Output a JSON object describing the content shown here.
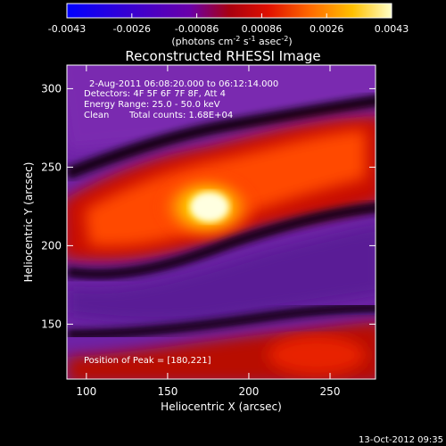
{
  "chart_data": {
    "type": "heatmap",
    "title": "Reconstructed RHESSI Image",
    "xlabel": "Heliocentric X (arcsec)",
    "ylabel": "Heliocentric Y (arcsec)",
    "xlim": [
      88,
      278
    ],
    "ylim": [
      115,
      315
    ],
    "x_ticks": [
      100,
      150,
      200,
      250
    ],
    "y_ticks": [
      150,
      200,
      250,
      300
    ],
    "colorbar": {
      "ticks": [
        "-0.0043",
        "-0.0026",
        "-0.00086",
        "0.00086",
        "0.0026",
        "0.0043"
      ],
      "unit_main": "(photons cm",
      "unit_exp1": "-2",
      "unit_mid": " s",
      "unit_exp2": "-1",
      "unit_end": " asec",
      "unit_exp3": "-2",
      "unit_close": ")"
    },
    "annotations": {
      "time_range": "2-Aug-2011 06:08:20.000 to 06:12:14.000",
      "detectors": "Detectors: 4F 5F 6F 7F 8F, Att 4",
      "energy": "Energy Range: 25.0 - 50.0 keV",
      "clean": "Clean",
      "counts": "Total counts: 1.68E+04",
      "peak": "Position of Peak = [180,221]"
    },
    "peak": [
      180,
      221
    ],
    "timestamp": "13-Oct-2012 09:35"
  }
}
